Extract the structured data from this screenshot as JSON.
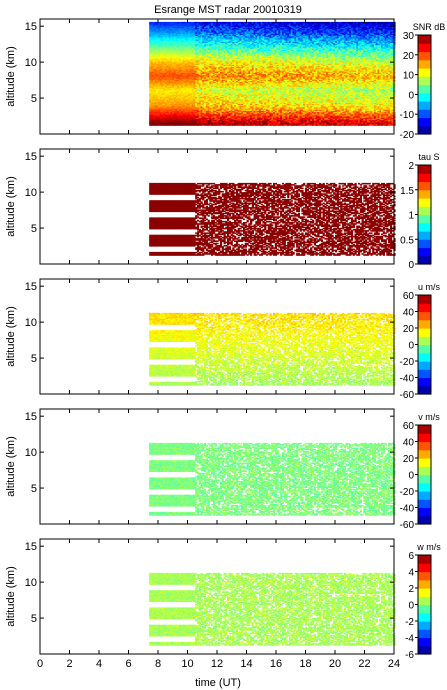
{
  "figure": {
    "title": "Esrange MST radar 20010319",
    "xlabel": "time (UT)"
  },
  "chart_data": [
    {
      "type": "heatmap",
      "title": "Esrange MST radar 20010319",
      "ylabel": "altitude (km)",
      "xlabel": "",
      "xlim": [
        0,
        24
      ],
      "ylim": [
        0,
        16
      ],
      "y_ticks": [
        5,
        10,
        15
      ],
      "colorbar": {
        "label": "SNR dB",
        "range": [
          -20,
          30
        ],
        "ticks": [
          -20,
          -10,
          0,
          10,
          20,
          30
        ]
      },
      "data_window_hours": [
        7.4,
        24
      ],
      "altitude_range_km": [
        1.2,
        15.5
      ],
      "profile": [
        {
          "alt": 1.5,
          "value": 28
        },
        {
          "alt": 2.5,
          "value": 22
        },
        {
          "alt": 4,
          "value": 14
        },
        {
          "alt": 6,
          "value": 10
        },
        {
          "alt": 8,
          "value": 18
        },
        {
          "alt": 10,
          "value": 12
        },
        {
          "alt": 12,
          "value": 2
        },
        {
          "alt": 14,
          "value": -8
        },
        {
          "alt": 15.5,
          "value": -14
        }
      ]
    },
    {
      "type": "heatmap",
      "ylabel": "altitude (km)",
      "xlabel": "",
      "xlim": [
        0,
        24
      ],
      "ylim": [
        0,
        16
      ],
      "y_ticks": [
        5,
        10,
        15
      ],
      "colorbar": {
        "label": "tau S",
        "range": [
          0,
          2
        ],
        "ticks": [
          0,
          0.5,
          1,
          1.5,
          2
        ]
      },
      "data_window_hours": [
        7.4,
        24
      ],
      "altitude_range_km": [
        1.2,
        11.2
      ],
      "typical_value": 2
    },
    {
      "type": "heatmap",
      "ylabel": "altitude (km)",
      "xlabel": "",
      "xlim": [
        0,
        24
      ],
      "ylim": [
        0,
        16
      ],
      "y_ticks": [
        5,
        10,
        15
      ],
      "colorbar": {
        "label": "u m/s",
        "range": [
          -60,
          60
        ],
        "ticks": [
          -60,
          -40,
          -20,
          0,
          20,
          40,
          60
        ]
      },
      "data_window_hours": [
        7.4,
        24
      ],
      "altitude_range_km": [
        1.2,
        11.2
      ],
      "typical_value": 10
    },
    {
      "type": "heatmap",
      "ylabel": "altitude (km)",
      "xlabel": "",
      "xlim": [
        0,
        24
      ],
      "ylim": [
        0,
        16
      ],
      "y_ticks": [
        5,
        10,
        15
      ],
      "colorbar": {
        "label": "v m/s",
        "range": [
          -60,
          60
        ],
        "ticks": [
          -60,
          -40,
          -20,
          0,
          20,
          40,
          60
        ]
      },
      "data_window_hours": [
        7.4,
        24
      ],
      "altitude_range_km": [
        1.2,
        11.2
      ],
      "typical_value": 0
    },
    {
      "type": "heatmap",
      "ylabel": "altitude (km)",
      "xlabel": "time (UT)",
      "xlim": [
        0,
        24
      ],
      "ylim": [
        0,
        16
      ],
      "y_ticks": [
        5,
        10,
        15
      ],
      "x_ticks": [
        0,
        2,
        4,
        6,
        8,
        10,
        12,
        14,
        16,
        18,
        20,
        22,
        24
      ],
      "colorbar": {
        "label": "w m/s",
        "range": [
          -6,
          6
        ],
        "ticks": [
          -6,
          -4,
          -2,
          0,
          2,
          4,
          6
        ]
      },
      "data_window_hours": [
        7.4,
        24
      ],
      "altitude_range_km": [
        1.2,
        11.2
      ],
      "typical_value": 0.5
    }
  ]
}
